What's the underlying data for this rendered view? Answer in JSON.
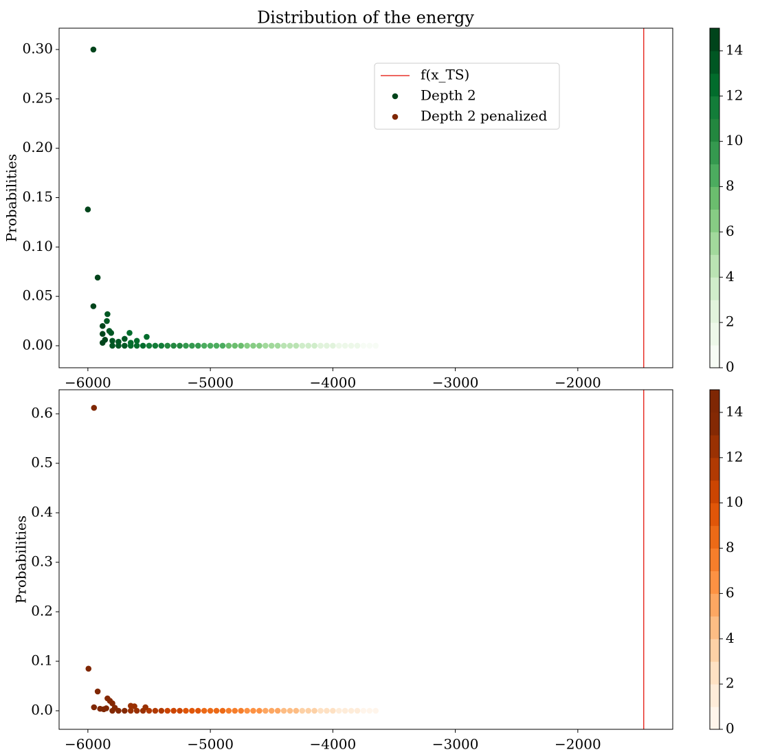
{
  "chart_data": [
    {
      "type": "scatter",
      "title": "Distribution of the energy",
      "ylabel": "Probabilities",
      "xlim": [
        -6235,
        -1225
      ],
      "ylim": [
        -0.0223,
        0.3216
      ],
      "xticks": [
        {
          "value": -6000,
          "label": "−6000"
        },
        {
          "value": -5000,
          "label": "−5000"
        },
        {
          "value": -4000,
          "label": "−4000"
        },
        {
          "value": -3000,
          "label": "−3000"
        },
        {
          "value": -2000,
          "label": "−2000"
        }
      ],
      "yticks": [
        {
          "value": 0,
          "label": "0.00"
        },
        0.05,
        {
          "value": 0.1,
          "label": "0.10"
        },
        0.15,
        {
          "value": 0.2,
          "label": "0.20"
        },
        0.25,
        {
          "value": 0.3,
          "label": "0.30"
        }
      ],
      "vline": {
        "name": "f(x_TS)",
        "x": -1462,
        "color": "#e8322a"
      },
      "legend": "upper right",
      "series": [
        {
          "name": "Depth 2",
          "color": "#00441b",
          "x": [
            -3650,
            -3700,
            -3750,
            -3800,
            -3850,
            -3900,
            -3950,
            -4000,
            -4050,
            -4100,
            -4150,
            -4200,
            -4250,
            -4300,
            -4350,
            -4400,
            -4450,
            -4500,
            -4550,
            -4600,
            -4650,
            -4700,
            -4750,
            -4800,
            -4850,
            -4900,
            -4950,
            -5000,
            -5050,
            -5100,
            -5150,
            -5200,
            -5250,
            -5300,
            -5350,
            -5400,
            -5450,
            -5500,
            -5550,
            -5600,
            -5650,
            -5700,
            -5750,
            -5800,
            -5520,
            -5600,
            -5650,
            -5660,
            -5700,
            -5750,
            -5800,
            -5810,
            -5825,
            -5840,
            -5845,
            -5860,
            -5880,
            -5880,
            -5880,
            -5920,
            -5955,
            -6000,
            -5955
          ],
          "values": [
            0,
            0,
            0,
            0,
            0,
            0,
            0,
            0,
            0,
            0,
            0,
            0,
            0,
            0,
            0,
            0,
            0,
            0,
            0,
            0,
            0,
            0,
            0,
            0,
            0,
            0,
            0,
            0,
            0,
            0,
            0,
            0,
            0,
            0,
            0,
            0,
            0,
            0,
            0,
            0,
            0,
            0,
            0,
            0,
            0.009,
            0.005,
            0.003,
            0.013,
            0.007,
            0.004,
            0.005,
            0.013,
            0.015,
            0.032,
            0.025,
            0.006,
            0.012,
            0.02,
            0.003,
            0.069,
            0.04,
            0.138,
            0.3
          ],
          "c": [
            0.1,
            0.4,
            0.7,
            1.0,
            1.3,
            1.6,
            1.9,
            2.2,
            2.5,
            2.9,
            3.2,
            3.5,
            3.8,
            4.1,
            4.5,
            4.8,
            5.1,
            5.4,
            5.7,
            6.1,
            6.4,
            6.7,
            7.0,
            7.3,
            7.6,
            8.0,
            8.3,
            8.6,
            8.9,
            9.3,
            9.6,
            9.9,
            10.2,
            10.5,
            10.8,
            11.2,
            11.5,
            11.8,
            12.1,
            12.4,
            12.8,
            13.1,
            13.4,
            13.7,
            12.0,
            12.4,
            12.8,
            12.8,
            13.1,
            13.4,
            13.7,
            13.7,
            13.8,
            13.9,
            13.9,
            14.0,
            14.1,
            14.1,
            14.1,
            14.3,
            14.5,
            14.8,
            14.9
          ]
        }
      ],
      "colorbar": {
        "lim": [
          0,
          15
        ],
        "ticks": [
          0,
          2,
          4,
          6,
          8,
          10,
          12,
          14
        ],
        "colors": [
          "#f7fcf5",
          "#edf8e9",
          "#e1f3dc",
          "#d0edca",
          "#bae3b3",
          "#a2d99c",
          "#87cc84",
          "#6bbd6e",
          "#4cac5f",
          "#35994f",
          "#23873f",
          "#137d39",
          "#026c2c",
          "#005723",
          "#00441b"
        ]
      }
    },
    {
      "type": "scatter",
      "ylabel": "Probabilities",
      "xlim": [
        -6235,
        -1225
      ],
      "ylim": [
        -0.0375,
        0.6486
      ],
      "xticks": [
        {
          "value": -6000,
          "label": "−6000"
        },
        {
          "value": -5000,
          "label": "−5000"
        },
        {
          "value": -4000,
          "label": "−4000"
        },
        {
          "value": -3000,
          "label": "−3000"
        },
        {
          "value": -2000,
          "label": "−2000"
        }
      ],
      "yticks": [
        {
          "value": 0,
          "label": "0.0"
        },
        0.1,
        0.2,
        0.3,
        0.4,
        0.5,
        0.6
      ],
      "vline": {
        "x": -1462,
        "color": "#e8322a"
      },
      "series": [
        {
          "name": "Depth 2 penalized",
          "color": "#7f2704",
          "x": [
            -3650,
            -3700,
            -3750,
            -3800,
            -3850,
            -3900,
            -3950,
            -4000,
            -4050,
            -4100,
            -4150,
            -4200,
            -4250,
            -4300,
            -4350,
            -4400,
            -4450,
            -4500,
            -4550,
            -4600,
            -4650,
            -4700,
            -4750,
            -4800,
            -4850,
            -4900,
            -4950,
            -5000,
            -5050,
            -5100,
            -5150,
            -5200,
            -5250,
            -5300,
            -5350,
            -5400,
            -5450,
            -5500,
            -5550,
            -5600,
            -5650,
            -5700,
            -5750,
            -5800,
            -5530,
            -5620,
            -5650,
            -5780,
            -5800,
            -5820,
            -5840,
            -5850,
            -5870,
            -5900,
            -5920,
            -5950,
            -5995,
            -5950
          ],
          "values": [
            0,
            0,
            0,
            0,
            0,
            0,
            0,
            0,
            0,
            0,
            0,
            0,
            0,
            0,
            0,
            0,
            0,
            0,
            0,
            0,
            0,
            0,
            0,
            0,
            0,
            0,
            0,
            0,
            0,
            0,
            0,
            0,
            0,
            0,
            0,
            0,
            0,
            0,
            0,
            0,
            0,
            0,
            0,
            0,
            0.007,
            0.009,
            0.01,
            0.006,
            0.015,
            0.02,
            0.025,
            0.005,
            0.003,
            0.004,
            0.039,
            0.007,
            0.085,
            0.612
          ],
          "c": [
            0.1,
            0.4,
            0.7,
            1.0,
            1.3,
            1.6,
            1.9,
            2.2,
            2.5,
            2.9,
            3.2,
            3.5,
            3.8,
            4.1,
            4.5,
            4.8,
            5.1,
            5.4,
            5.7,
            6.1,
            6.4,
            6.7,
            7.0,
            7.3,
            7.6,
            8.0,
            8.3,
            8.6,
            8.9,
            9.3,
            9.6,
            9.9,
            10.2,
            10.5,
            10.8,
            11.2,
            11.5,
            11.8,
            12.1,
            12.4,
            12.8,
            13.1,
            13.4,
            13.7,
            12.0,
            12.6,
            12.8,
            13.6,
            13.7,
            13.8,
            13.9,
            14.0,
            14.1,
            14.2,
            14.3,
            14.5,
            14.8,
            14.9
          ]
        }
      ],
      "colorbar": {
        "lim": [
          0,
          15
        ],
        "ticks": [
          0,
          2,
          4,
          6,
          8,
          10,
          12,
          14
        ],
        "colors": [
          "#fff5eb",
          "#feecd9",
          "#fee1c3",
          "#fdd1a6",
          "#fdbd84",
          "#fda762",
          "#fd9243",
          "#f67e2b",
          "#ec6a17",
          "#e05609",
          "#cc4502",
          "#b13a03",
          "#9a3103",
          "#842904",
          "#7f2704"
        ]
      }
    }
  ]
}
